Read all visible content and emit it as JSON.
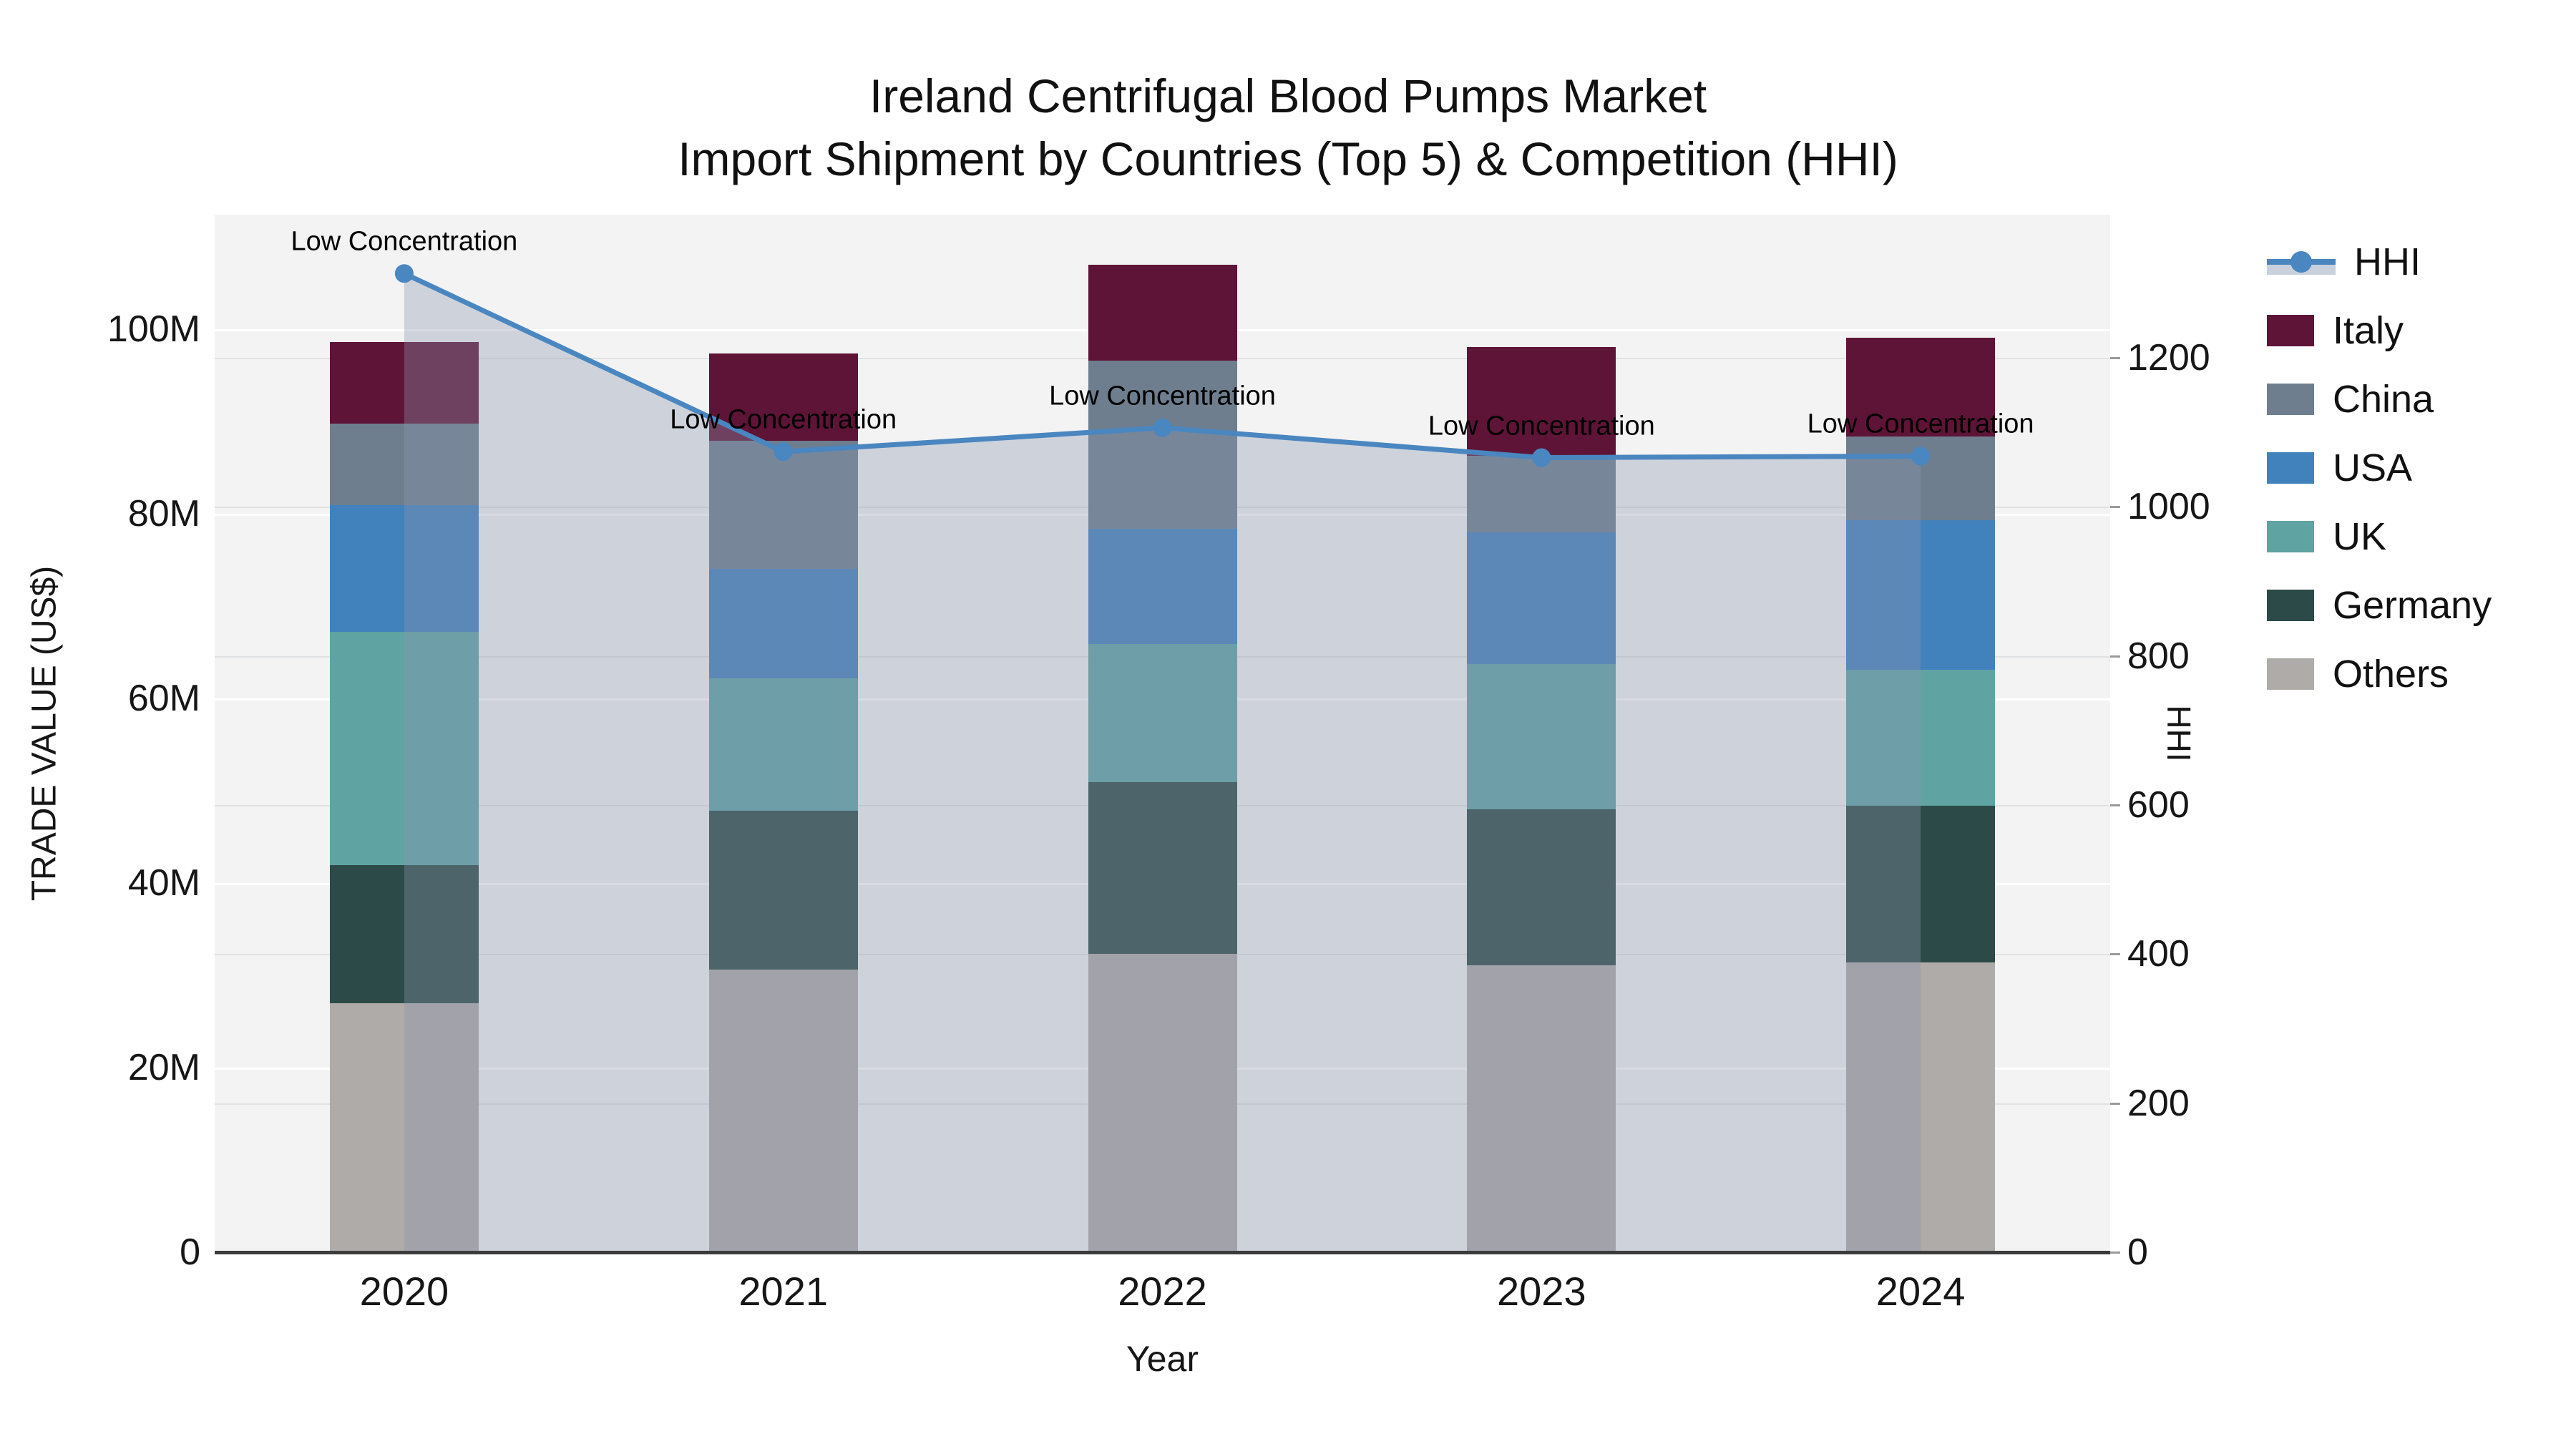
{
  "title": {
    "line1": "Ireland Centrifugal Blood Pumps Market",
    "line2": "Import Shipment by Countries (Top 5) & Competition (HHI)"
  },
  "axes": {
    "y_left": {
      "title": "TRADE VALUE (US$)",
      "tick_labels": [
        "0",
        "20M",
        "40M",
        "60M",
        "80M",
        "100M"
      ],
      "tick_values": [
        0,
        20,
        40,
        60,
        80,
        100
      ],
      "unit": "millions US$"
    },
    "y_right": {
      "title": "HHI",
      "tick_labels": [
        "0",
        "200",
        "400",
        "600",
        "800",
        "1000",
        "1200"
      ],
      "tick_values": [
        0,
        200,
        400,
        600,
        800,
        1000,
        1200
      ]
    },
    "x": {
      "title": "Year"
    }
  },
  "legend": {
    "items": [
      {
        "label": "HHI",
        "type": "line",
        "color": "#4a86c0",
        "fill": "#c9d1dd"
      },
      {
        "label": "Italy",
        "type": "box",
        "color": "#5e1436"
      },
      {
        "label": "China",
        "type": "box",
        "color": "#6e7e8f"
      },
      {
        "label": "USA",
        "type": "box",
        "color": "#4181bc"
      },
      {
        "label": "UK",
        "type": "box",
        "color": "#5fa3a3"
      },
      {
        "label": "Germany",
        "type": "box",
        "color": "#2c4a47"
      },
      {
        "label": "Others",
        "type": "box",
        "color": "#aeaba8"
      }
    ]
  },
  "chart_data": {
    "type": "bar+line",
    "title": "Ireland Centrifugal Blood Pumps Market — Import Shipment by Countries (Top 5) & Competition (HHI)",
    "categories": [
      "2020",
      "2021",
      "2022",
      "2023",
      "2024"
    ],
    "bar_unit": "million US$",
    "stack_order_bottom_to_top": [
      "Others",
      "Germany",
      "UK",
      "USA",
      "China",
      "Italy"
    ],
    "series": [
      {
        "name": "Others",
        "color": "#aeaba8",
        "values": [
          27.0,
          30.6,
          32.3,
          31.1,
          31.4
        ]
      },
      {
        "name": "Germany",
        "color": "#2c4a47",
        "values": [
          14.9,
          17.2,
          18.6,
          16.9,
          17.0
        ]
      },
      {
        "name": "UK",
        "color": "#5fa3a3",
        "values": [
          25.3,
          14.4,
          15.0,
          15.7,
          14.7
        ]
      },
      {
        "name": "USA",
        "color": "#4181bc",
        "values": [
          13.7,
          11.8,
          12.5,
          14.3,
          16.2
        ]
      },
      {
        "name": "China",
        "color": "#6e7e8f",
        "values": [
          8.9,
          13.9,
          18.2,
          8.3,
          9.1
        ]
      },
      {
        "name": "Italy",
        "color": "#5e1436",
        "values": [
          8.8,
          9.5,
          10.4,
          11.8,
          10.7
        ]
      }
    ],
    "bar_totals": [
      98.6,
      97.4,
      107.0,
      98.1,
      99.1
    ],
    "line_series": {
      "name": "HHI",
      "color": "#4a86c0",
      "area_fill": "rgba(140,150,175,0.35)",
      "values": [
        1313,
        1074,
        1106,
        1066,
        1068
      ],
      "axis": "right"
    },
    "annotation_text": "Low Concentration",
    "annotations_per_point": [
      "Low Concentration",
      "Low Concentration",
      "Low Concentration",
      "Low Concentration",
      "Low Concentration"
    ],
    "ylim_left": [
      0,
      112.4
    ],
    "ylim_right": [
      0,
      1392
    ],
    "grid": true,
    "legend_position": "right",
    "plot_bg": "#f2f3f2"
  }
}
